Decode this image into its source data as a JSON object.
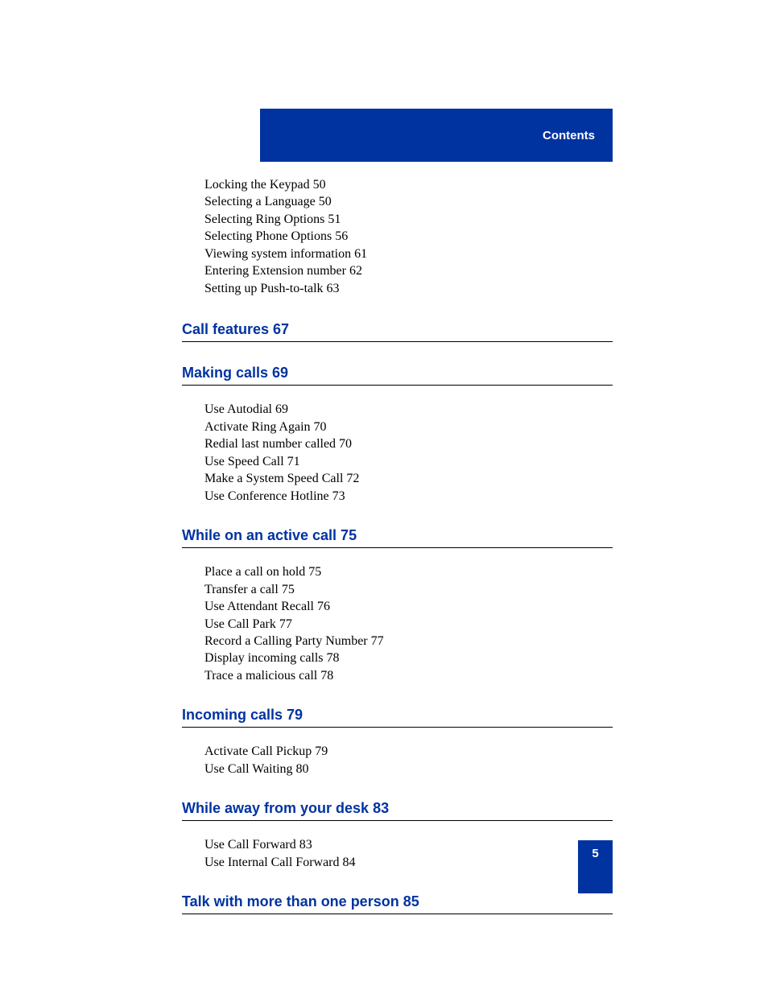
{
  "header": {
    "label": "Contents"
  },
  "footer": {
    "page_number": "5"
  },
  "colors": {
    "accent_blue": "#0033a0",
    "text_black": "#000000",
    "background": "#ffffff"
  },
  "typography": {
    "body_font": "Times New Roman",
    "heading_font": "Arial",
    "body_fontsize": 16,
    "heading_fontsize": 18,
    "header_fontsize": 15
  },
  "sections": {
    "pre_items": [
      "Locking the Keypad 50",
      "Selecting a Language 50",
      "Selecting Ring Options 51",
      "Selecting Phone Options 56",
      "Viewing system information 61",
      "Entering Extension number 62",
      "Setting up Push-to-talk 63"
    ],
    "call_features": {
      "heading": "Call features 67",
      "items": []
    },
    "making_calls": {
      "heading": "Making calls 69",
      "items": [
        "Use Autodial 69",
        "Activate Ring Again 70",
        "Redial last number called 70",
        "Use Speed Call 71",
        "Make a System Speed Call 72",
        "Use Conference Hotline 73"
      ]
    },
    "active_call": {
      "heading": "While on an active call 75",
      "items": [
        "Place a call on hold 75",
        "Transfer a call 75",
        "Use Attendant Recall 76",
        "Use Call Park 77",
        "Record a Calling Party Number 77",
        "Display incoming calls 78",
        "Trace a malicious call 78"
      ]
    },
    "incoming_calls": {
      "heading": "Incoming calls 79",
      "items": [
        "Activate Call Pickup 79",
        "Use Call Waiting 80"
      ]
    },
    "away_from_desk": {
      "heading": "While away from your desk 83",
      "items": [
        "Use Call Forward 83",
        "Use Internal Call Forward 84"
      ]
    },
    "talk_multiple": {
      "heading": "Talk with more than one person 85",
      "items": []
    }
  }
}
